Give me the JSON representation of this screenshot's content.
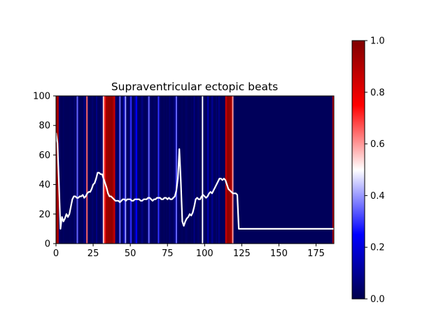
{
  "chart_data": [
    {
      "type": "heatmap",
      "title": "Supraventricular ectopic beats",
      "xlabel": "",
      "ylabel": "",
      "xlim": [
        0,
        187
      ],
      "ylim": [
        0,
        100
      ],
      "x_ticks": [
        0,
        25,
        50,
        75,
        100,
        125,
        150,
        175
      ],
      "y_ticks": [
        0,
        20,
        40,
        60,
        80,
        100
      ],
      "x_tick_labels": [
        "0",
        "25",
        "50",
        "75",
        "100",
        "125",
        "150",
        "175"
      ],
      "y_tick_labels": [
        "0",
        "20",
        "40",
        "60",
        "80",
        "100"
      ],
      "heatmap_colormap": "seismic",
      "heatmap_values": [
        0.95,
        0.92,
        0.05,
        0.02,
        0.02,
        0.03,
        0.02,
        0.02,
        0.02,
        0.02,
        0.03,
        0.02,
        0.02,
        0.05,
        0.02,
        0.35,
        0.05,
        0.02,
        0.02,
        0.02,
        0.08,
        0.04,
        0.65,
        0.03,
        0.02,
        0.03,
        0.05,
        0.03,
        0.02,
        0.08,
        0.03,
        0.02,
        0.03,
        0.04,
        0.55,
        0.72,
        0.93,
        0.95,
        0.96,
        0.96,
        0.97,
        0.93,
        0.85,
        0.05,
        0.03,
        0.05,
        0.35,
        0.02,
        0.05,
        0.15,
        0.4,
        0.04,
        0.02,
        0.08,
        0.3,
        0.03,
        0.02,
        0.1,
        0.25,
        0.04,
        0.02,
        0.03,
        0.08,
        0.04,
        0.02,
        0.02,
        0.05,
        0.35,
        0.05,
        0.02,
        0.03,
        0.04,
        0.03,
        0.02,
        0.3,
        0.05,
        0.02,
        0.02,
        0.03,
        0.02,
        0.03,
        0.02,
        0.05,
        0.03,
        0.02,
        0.04,
        0.08,
        0.35,
        0.05,
        0.02,
        0.02,
        0.03,
        0.02,
        0.02,
        0.04,
        0.03,
        0.02,
        0.02,
        0.03,
        0.02,
        0.08,
        0.02,
        0.03,
        0.05,
        0.02,
        0.02,
        0.5,
        0.04,
        0.02,
        0.03,
        0.15,
        0.02,
        0.03,
        0.1,
        0.04,
        0.02,
        0.05,
        0.03,
        0.08,
        0.03,
        0.02,
        0.03,
        0.02,
        0.85,
        0.95,
        0.97,
        0.95,
        0.92,
        0.6,
        0.02,
        0.02,
        0.02,
        0.02,
        0.02,
        0.02,
        0.02,
        0.02,
        0.02,
        0.02,
        0.02,
        0.02,
        0.02,
        0.02,
        0.02,
        0.02,
        0.02,
        0.02,
        0.02,
        0.02,
        0.02,
        0.02,
        0.02,
        0.02,
        0.02,
        0.02,
        0.02,
        0.02,
        0.02,
        0.02,
        0.02,
        0.02,
        0.02,
        0.02,
        0.02,
        0.02,
        0.02,
        0.02,
        0.02,
        0.02,
        0.02,
        0.02,
        0.02,
        0.02,
        0.02,
        0.02,
        0.02,
        0.02,
        0.02,
        0.02,
        0.02,
        0.02,
        0.02,
        0.02,
        0.02,
        0.02,
        0.02,
        0.02,
        0.02,
        0.02,
        0.02,
        0.02,
        0.02,
        0.02,
        0.02,
        0.02,
        0.02,
        0.02,
        0.02,
        0.02,
        0.02,
        0.02,
        0.85
      ],
      "line_color": "#ffffff",
      "series": [
        {
          "x": [
            0,
            1,
            2,
            3,
            4,
            5,
            6,
            7,
            8,
            9,
            10,
            11,
            12,
            13,
            14,
            15,
            16,
            17,
            18,
            19,
            20,
            21,
            22,
            23,
            24,
            25,
            26,
            27,
            28,
            29,
            30,
            31,
            32,
            33,
            34,
            35,
            36,
            37,
            38,
            39,
            40,
            41,
            42,
            43,
            44,
            45,
            46,
            47,
            48,
            49,
            50,
            51,
            52,
            53,
            54,
            55,
            56,
            57,
            58,
            59,
            60,
            61,
            62,
            63,
            64,
            65,
            66,
            67,
            68,
            69,
            70,
            71,
            72,
            73,
            74,
            75,
            76,
            77,
            78,
            79,
            80,
            81,
            82,
            83,
            84,
            85,
            86,
            87,
            88,
            89,
            90,
            91,
            92,
            93,
            94,
            95,
            96,
            97,
            98,
            99,
            100,
            101,
            102,
            103,
            104,
            105,
            106,
            107,
            108,
            109,
            110,
            111,
            112,
            113,
            114,
            115,
            116,
            117,
            118,
            119,
            120,
            121,
            122,
            123,
            124,
            125,
            126,
            127,
            128,
            129,
            130,
            131,
            187
          ],
          "y": [
            75,
            68,
            40,
            10,
            18,
            15,
            17,
            20,
            18,
            20,
            25,
            30,
            32,
            32,
            31,
            31,
            32,
            32,
            33,
            31,
            32,
            34,
            35,
            35,
            37,
            40,
            41,
            44,
            48,
            48,
            47,
            47,
            44,
            41,
            38,
            34,
            32,
            32,
            31,
            30,
            29,
            29,
            29,
            28,
            29,
            30,
            30,
            29,
            30,
            30,
            30,
            29,
            29,
            30,
            30,
            30,
            30,
            29,
            29,
            30,
            30,
            30,
            31,
            31,
            30,
            29,
            30,
            30,
            31,
            31,
            31,
            30,
            30,
            31,
            31,
            30,
            31,
            30,
            30,
            31,
            32,
            36,
            44,
            64,
            42,
            15,
            12,
            15,
            17,
            18,
            20,
            19,
            21,
            25,
            30,
            31,
            30,
            30,
            32,
            33,
            32,
            31,
            32,
            34,
            35,
            34,
            36,
            38,
            40,
            42,
            44,
            44,
            43,
            44,
            43,
            40,
            37,
            36,
            35,
            34,
            34,
            34,
            33,
            10,
            10,
            10,
            10,
            10,
            10,
            10,
            10,
            10,
            10
          ]
        }
      ],
      "grid": false
    },
    {
      "type": "heatmap",
      "ylim": [
        0,
        1
      ],
      "y_ticks": [
        0,
        0.2,
        0.4,
        0.6,
        0.8,
        1
      ],
      "y_tick_labels": [
        "0.0",
        "0.2",
        "0.4",
        "0.6",
        "0.8",
        "1.0"
      ],
      "colormap": "seismic"
    }
  ]
}
